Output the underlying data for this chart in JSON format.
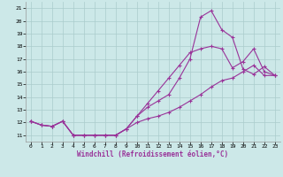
{
  "xlabel": "Windchill (Refroidissement éolien,°C)",
  "xlim": [
    -0.5,
    23.5
  ],
  "ylim": [
    10.5,
    21.5
  ],
  "xticks": [
    0,
    1,
    2,
    3,
    4,
    5,
    6,
    7,
    8,
    9,
    10,
    11,
    12,
    13,
    14,
    15,
    16,
    17,
    18,
    19,
    20,
    21,
    22,
    23
  ],
  "yticks": [
    11,
    12,
    13,
    14,
    15,
    16,
    17,
    18,
    19,
    20,
    21
  ],
  "line_color": "#993399",
  "bg_color": "#cce8e8",
  "grid_color": "#aacccc",
  "curve1_x": [
    0,
    1,
    2,
    3,
    4,
    5,
    6,
    7,
    8,
    9,
    10,
    11,
    12,
    13,
    14,
    15,
    16,
    17,
    18,
    19,
    20,
    21,
    22,
    23
  ],
  "curve1_y": [
    12.1,
    11.8,
    11.7,
    12.1,
    11.0,
    11.0,
    11.0,
    11.0,
    11.0,
    11.5,
    12.5,
    13.2,
    13.7,
    14.2,
    15.5,
    17.0,
    20.3,
    20.8,
    19.3,
    18.7,
    16.2,
    15.8,
    16.4,
    15.7
  ],
  "curve2_x": [
    0,
    1,
    2,
    3,
    4,
    5,
    6,
    7,
    8,
    9,
    10,
    11,
    12,
    13,
    14,
    15,
    16,
    17,
    18,
    19,
    20,
    21,
    22,
    23
  ],
  "curve2_y": [
    12.1,
    11.8,
    11.7,
    12.1,
    11.0,
    11.0,
    11.0,
    11.0,
    11.0,
    11.5,
    12.5,
    13.5,
    14.5,
    15.5,
    16.5,
    17.5,
    17.8,
    18.0,
    17.8,
    16.3,
    16.8,
    17.8,
    16.0,
    15.7
  ],
  "curve3_x": [
    0,
    1,
    2,
    3,
    4,
    5,
    6,
    7,
    8,
    9,
    10,
    11,
    12,
    13,
    14,
    15,
    16,
    17,
    18,
    19,
    20,
    21,
    22,
    23
  ],
  "curve3_y": [
    12.1,
    11.8,
    11.7,
    12.1,
    11.0,
    11.0,
    11.0,
    11.0,
    11.0,
    11.5,
    12.0,
    12.3,
    12.5,
    12.8,
    13.2,
    13.7,
    14.2,
    14.8,
    15.3,
    15.5,
    16.0,
    16.5,
    15.7,
    15.7
  ]
}
